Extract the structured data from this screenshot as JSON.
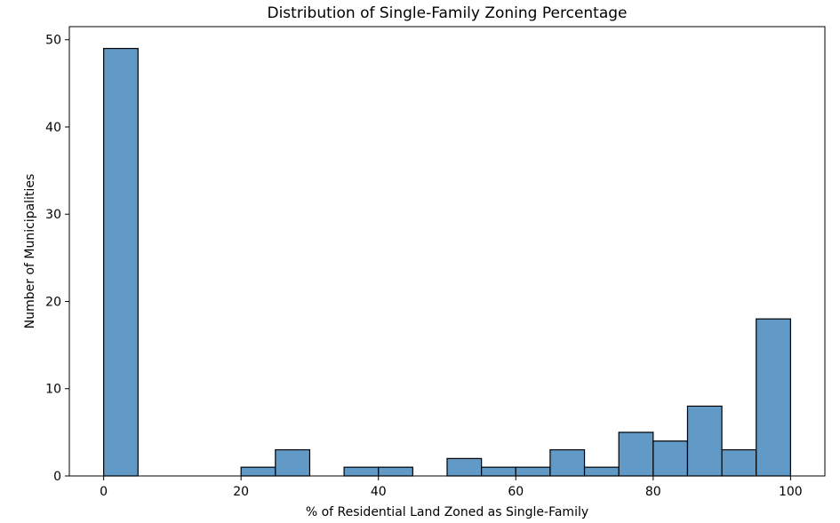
{
  "chart_data": {
    "type": "bar",
    "title": "Distribution of Single-Family Zoning Percentage",
    "xlabel": "% of Residential Land Zoned as Single-Family",
    "ylabel": "Number of Municipalities",
    "xlim": [
      -5,
      105
    ],
    "ylim": [
      0,
      51.5
    ],
    "x_ticks": [
      0,
      20,
      40,
      60,
      80,
      100
    ],
    "y_ticks": [
      0,
      10,
      20,
      30,
      40,
      50
    ],
    "grid": false,
    "bar_color": "#6199c7",
    "edge_color": "#000000",
    "bins": [
      {
        "start": 0,
        "end": 5,
        "count": 49
      },
      {
        "start": 5,
        "end": 10,
        "count": 0
      },
      {
        "start": 10,
        "end": 15,
        "count": 0
      },
      {
        "start": 15,
        "end": 20,
        "count": 0
      },
      {
        "start": 20,
        "end": 25,
        "count": 1
      },
      {
        "start": 25,
        "end": 30,
        "count": 3
      },
      {
        "start": 30,
        "end": 35,
        "count": 0
      },
      {
        "start": 35,
        "end": 40,
        "count": 1
      },
      {
        "start": 40,
        "end": 45,
        "count": 1
      },
      {
        "start": 45,
        "end": 50,
        "count": 0
      },
      {
        "start": 50,
        "end": 55,
        "count": 2
      },
      {
        "start": 55,
        "end": 60,
        "count": 1
      },
      {
        "start": 60,
        "end": 65,
        "count": 1
      },
      {
        "start": 65,
        "end": 70,
        "count": 3
      },
      {
        "start": 70,
        "end": 75,
        "count": 1
      },
      {
        "start": 75,
        "end": 80,
        "count": 5
      },
      {
        "start": 80,
        "end": 85,
        "count": 4
      },
      {
        "start": 85,
        "end": 90,
        "count": 8
      },
      {
        "start": 90,
        "end": 95,
        "count": 3
      },
      {
        "start": 95,
        "end": 100,
        "count": 18
      }
    ]
  }
}
